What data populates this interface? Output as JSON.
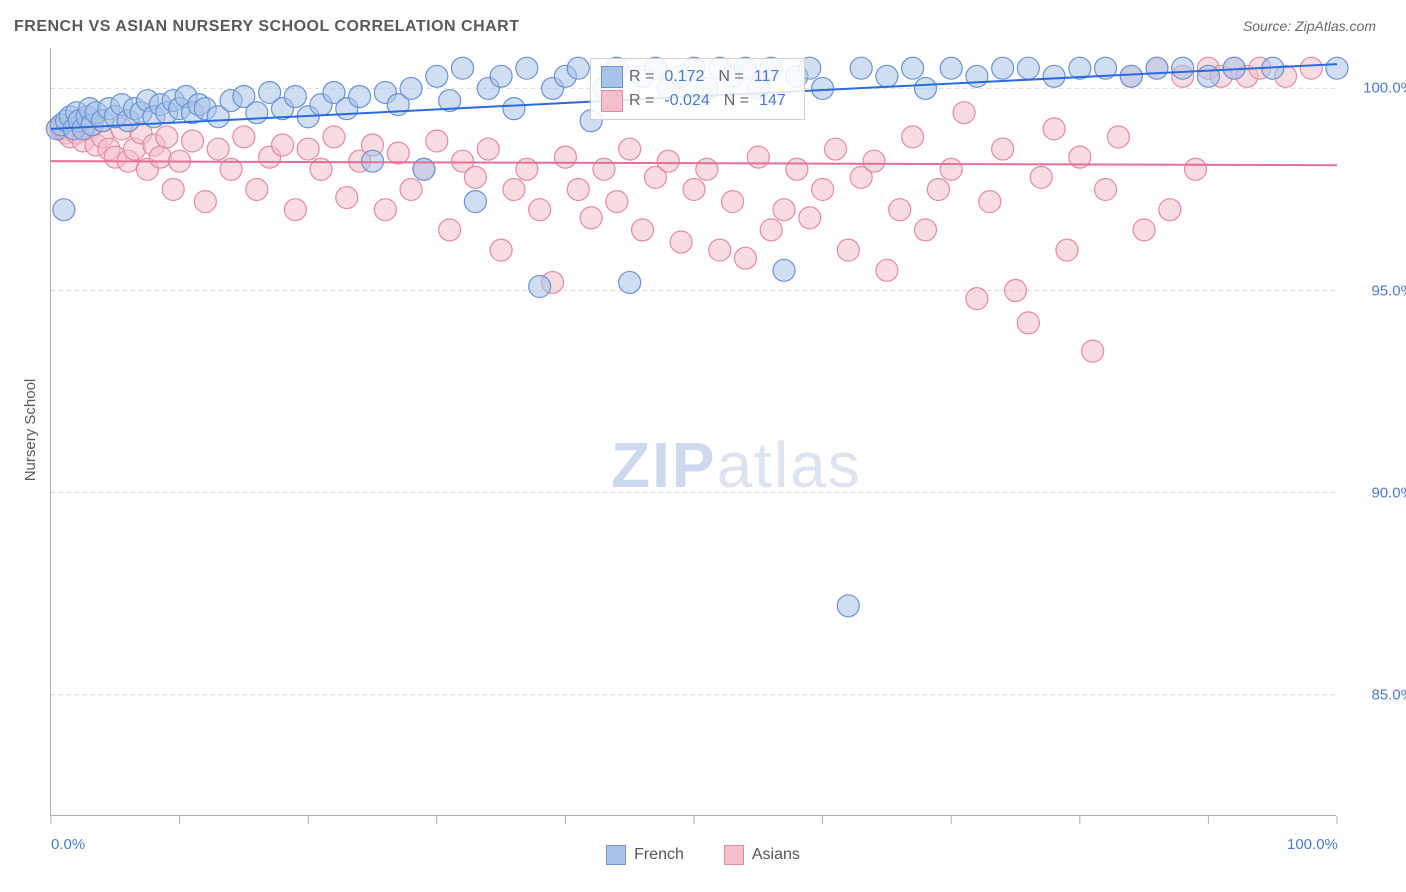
{
  "title": "FRENCH VS ASIAN NURSERY SCHOOL CORRELATION CHART",
  "source": "Source: ZipAtlas.com",
  "y_axis_title": "Nursery School",
  "watermark": {
    "bold": "ZIP",
    "light": "atlas"
  },
  "chart": {
    "type": "scatter",
    "background_color": "#ffffff",
    "grid_color": "#d8d8d8",
    "axis_color": "#b0b0b0",
    "xlim": [
      0,
      100
    ],
    "ylim": [
      82,
      101
    ],
    "x_ticks": [
      0,
      10,
      20,
      30,
      40,
      50,
      60,
      70,
      80,
      90,
      100
    ],
    "x_tick_labels": {
      "0": "0.0%",
      "100": "100.0%"
    },
    "y_ticks": [
      85,
      90,
      95,
      100
    ],
    "y_tick_labels": {
      "85": "85.0%",
      "90": "90.0%",
      "95": "95.0%",
      "100": "100.0%"
    },
    "tick_label_color": "#4a7bd4",
    "series": [
      {
        "name": "French",
        "fill": "#a8c3ea",
        "stroke": "#6b93d6",
        "fill_opacity": 0.55,
        "marker_radius": 11,
        "trend": {
          "y_at_x0": 99.0,
          "y_at_x100": 100.6,
          "color": "#2a6be0",
          "width": 2
        },
        "stats": {
          "R": "0.172",
          "N": "117"
        },
        "points": [
          [
            0.5,
            99.0
          ],
          [
            0.8,
            99.1
          ],
          [
            1.0,
            97.0
          ],
          [
            1.2,
            99.2
          ],
          [
            1.5,
            99.3
          ],
          [
            1.8,
            99.0
          ],
          [
            2.0,
            99.4
          ],
          [
            2.2,
            99.2
          ],
          [
            2.5,
            99.0
          ],
          [
            2.8,
            99.3
          ],
          [
            3.0,
            99.5
          ],
          [
            3.2,
            99.1
          ],
          [
            3.5,
            99.4
          ],
          [
            4.0,
            99.2
          ],
          [
            4.5,
            99.5
          ],
          [
            5.0,
            99.3
          ],
          [
            5.5,
            99.6
          ],
          [
            6.0,
            99.2
          ],
          [
            6.5,
            99.5
          ],
          [
            7.0,
            99.4
          ],
          [
            7.5,
            99.7
          ],
          [
            8.0,
            99.3
          ],
          [
            8.5,
            99.6
          ],
          [
            9.0,
            99.4
          ],
          [
            9.5,
            99.7
          ],
          [
            10.0,
            99.5
          ],
          [
            10.5,
            99.8
          ],
          [
            11.0,
            99.4
          ],
          [
            11.5,
            99.6
          ],
          [
            12.0,
            99.5
          ],
          [
            13.0,
            99.3
          ],
          [
            14.0,
            99.7
          ],
          [
            15.0,
            99.8
          ],
          [
            16.0,
            99.4
          ],
          [
            17.0,
            99.9
          ],
          [
            18.0,
            99.5
          ],
          [
            19.0,
            99.8
          ],
          [
            20.0,
            99.3
          ],
          [
            21.0,
            99.6
          ],
          [
            22.0,
            99.9
          ],
          [
            23.0,
            99.5
          ],
          [
            24.0,
            99.8
          ],
          [
            25.0,
            98.2
          ],
          [
            26.0,
            99.9
          ],
          [
            27.0,
            99.6
          ],
          [
            28.0,
            100.0
          ],
          [
            29.0,
            98.0
          ],
          [
            30.0,
            100.3
          ],
          [
            31.0,
            99.7
          ],
          [
            32.0,
            100.5
          ],
          [
            33.0,
            97.2
          ],
          [
            34.0,
            100.0
          ],
          [
            35.0,
            100.3
          ],
          [
            36.0,
            99.5
          ],
          [
            37.0,
            100.5
          ],
          [
            38.0,
            95.1
          ],
          [
            39.0,
            100.0
          ],
          [
            40.0,
            100.3
          ],
          [
            41.0,
            100.5
          ],
          [
            42.0,
            99.2
          ],
          [
            43.0,
            100.0
          ],
          [
            44.0,
            100.5
          ],
          [
            45.0,
            95.2
          ],
          [
            46.0,
            100.3
          ],
          [
            47.0,
            100.5
          ],
          [
            48.0,
            100.0
          ],
          [
            49.0,
            100.3
          ],
          [
            50.0,
            100.5
          ],
          [
            51.0,
            100.0
          ],
          [
            52.0,
            100.5
          ],
          [
            53.0,
            100.3
          ],
          [
            54.0,
            100.5
          ],
          [
            55.0,
            100.0
          ],
          [
            56.0,
            100.5
          ],
          [
            57.0,
            95.5
          ],
          [
            58.0,
            100.3
          ],
          [
            59.0,
            100.5
          ],
          [
            60.0,
            100.0
          ],
          [
            62.0,
            87.2
          ],
          [
            63.0,
            100.5
          ],
          [
            65.0,
            100.3
          ],
          [
            67.0,
            100.5
          ],
          [
            68.0,
            100.0
          ],
          [
            70.0,
            100.5
          ],
          [
            72.0,
            100.3
          ],
          [
            74.0,
            100.5
          ],
          [
            76.0,
            100.5
          ],
          [
            78.0,
            100.3
          ],
          [
            80.0,
            100.5
          ],
          [
            82.0,
            100.5
          ],
          [
            84.0,
            100.3
          ],
          [
            86.0,
            100.5
          ],
          [
            88.0,
            100.5
          ],
          [
            90.0,
            100.3
          ],
          [
            92.0,
            100.5
          ],
          [
            95.0,
            100.5
          ],
          [
            100.0,
            100.5
          ]
        ]
      },
      {
        "name": "Asians",
        "fill": "#f4bfcb",
        "stroke": "#e78aa3",
        "fill_opacity": 0.55,
        "marker_radius": 11,
        "trend": {
          "y_at_x0": 98.2,
          "y_at_x100": 98.1,
          "color": "#e37099",
          "width": 2
        },
        "stats": {
          "R": "-0.024",
          "N": "147"
        },
        "points": [
          [
            0.5,
            99.0
          ],
          [
            0.8,
            99.0
          ],
          [
            1.0,
            99.0
          ],
          [
            1.2,
            98.9
          ],
          [
            1.5,
            98.8
          ],
          [
            2.0,
            98.9
          ],
          [
            2.5,
            98.7
          ],
          [
            3.0,
            99.0
          ],
          [
            3.5,
            98.6
          ],
          [
            4.0,
            98.8
          ],
          [
            4.5,
            98.5
          ],
          [
            5.0,
            98.3
          ],
          [
            5.5,
            99.0
          ],
          [
            6.0,
            98.2
          ],
          [
            6.5,
            98.5
          ],
          [
            7.0,
            98.9
          ],
          [
            7.5,
            98.0
          ],
          [
            8.0,
            98.6
          ],
          [
            8.5,
            98.3
          ],
          [
            9.0,
            98.8
          ],
          [
            9.5,
            97.5
          ],
          [
            10.0,
            98.2
          ],
          [
            11.0,
            98.7
          ],
          [
            12.0,
            97.2
          ],
          [
            13.0,
            98.5
          ],
          [
            14.0,
            98.0
          ],
          [
            15.0,
            98.8
          ],
          [
            16.0,
            97.5
          ],
          [
            17.0,
            98.3
          ],
          [
            18.0,
            98.6
          ],
          [
            19.0,
            97.0
          ],
          [
            20.0,
            98.5
          ],
          [
            21.0,
            98.0
          ],
          [
            22.0,
            98.8
          ],
          [
            23.0,
            97.3
          ],
          [
            24.0,
            98.2
          ],
          [
            25.0,
            98.6
          ],
          [
            26.0,
            97.0
          ],
          [
            27.0,
            98.4
          ],
          [
            28.0,
            97.5
          ],
          [
            29.0,
            98.0
          ],
          [
            30.0,
            98.7
          ],
          [
            31.0,
            96.5
          ],
          [
            32.0,
            98.2
          ],
          [
            33.0,
            97.8
          ],
          [
            34.0,
            98.5
          ],
          [
            35.0,
            96.0
          ],
          [
            36.0,
            97.5
          ],
          [
            37.0,
            98.0
          ],
          [
            38.0,
            97.0
          ],
          [
            39.0,
            95.2
          ],
          [
            40.0,
            98.3
          ],
          [
            41.0,
            97.5
          ],
          [
            42.0,
            96.8
          ],
          [
            43.0,
            98.0
          ],
          [
            44.0,
            97.2
          ],
          [
            45.0,
            98.5
          ],
          [
            46.0,
            96.5
          ],
          [
            47.0,
            97.8
          ],
          [
            48.0,
            98.2
          ],
          [
            49.0,
            96.2
          ],
          [
            50.0,
            97.5
          ],
          [
            51.0,
            98.0
          ],
          [
            52.0,
            96.0
          ],
          [
            53.0,
            97.2
          ],
          [
            54.0,
            95.8
          ],
          [
            55.0,
            98.3
          ],
          [
            56.0,
            96.5
          ],
          [
            57.0,
            97.0
          ],
          [
            58.0,
            98.0
          ],
          [
            59.0,
            96.8
          ],
          [
            60.0,
            97.5
          ],
          [
            61.0,
            98.5
          ],
          [
            62.0,
            96.0
          ],
          [
            63.0,
            97.8
          ],
          [
            64.0,
            98.2
          ],
          [
            65.0,
            95.5
          ],
          [
            66.0,
            97.0
          ],
          [
            67.0,
            98.8
          ],
          [
            68.0,
            96.5
          ],
          [
            69.0,
            97.5
          ],
          [
            70.0,
            98.0
          ],
          [
            71.0,
            99.4
          ],
          [
            72.0,
            94.8
          ],
          [
            73.0,
            97.2
          ],
          [
            74.0,
            98.5
          ],
          [
            75.0,
            95.0
          ],
          [
            76.0,
            94.2
          ],
          [
            77.0,
            97.8
          ],
          [
            78.0,
            99.0
          ],
          [
            79.0,
            96.0
          ],
          [
            80.0,
            98.3
          ],
          [
            81.0,
            93.5
          ],
          [
            82.0,
            97.5
          ],
          [
            83.0,
            98.8
          ],
          [
            84.0,
            100.3
          ],
          [
            85.0,
            96.5
          ],
          [
            86.0,
            100.5
          ],
          [
            87.0,
            97.0
          ],
          [
            88.0,
            100.3
          ],
          [
            89.0,
            98.0
          ],
          [
            90.0,
            100.5
          ],
          [
            91.0,
            100.3
          ],
          [
            92.0,
            100.5
          ],
          [
            93.0,
            100.3
          ],
          [
            94.0,
            100.5
          ],
          [
            96.0,
            100.3
          ],
          [
            98.0,
            100.5
          ]
        ]
      }
    ]
  },
  "stats_box": {
    "R_label": "R =",
    "N_label": "N ="
  },
  "bottom_legend": [
    {
      "label": "French",
      "fill": "#a8c3ea",
      "stroke": "#6b93d6"
    },
    {
      "label": "Asians",
      "fill": "#f4bfcb",
      "stroke": "#e78aa3"
    }
  ]
}
